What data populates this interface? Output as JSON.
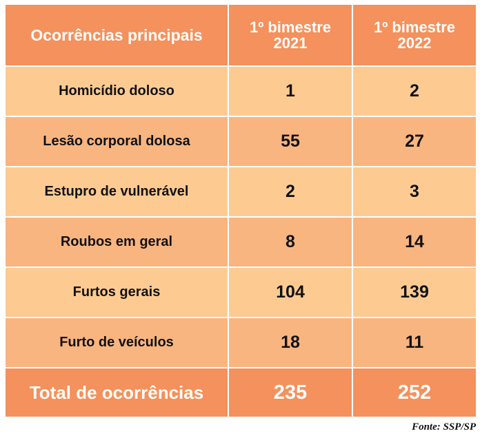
{
  "table": {
    "headers": [
      "Ocorrências principais",
      "1º bimestre 2021",
      "1º bimestre 2022"
    ],
    "header_lines": {
      "col1": "Ocorrências principais",
      "col2_line1": "1º bimestre",
      "col2_line2": "2021",
      "col3_line1": "1º bimestre",
      "col3_line2": "2022"
    },
    "rows": [
      {
        "label": "Homicídio doloso",
        "v2021": "1",
        "v2022": "2"
      },
      {
        "label": "Lesão corporal dolosa",
        "v2021": "55",
        "v2022": "27"
      },
      {
        "label": "Estupro de vulnerável",
        "v2021": "2",
        "v2022": "3"
      },
      {
        "label": "Roubos em geral",
        "v2021": "8",
        "v2022": "14"
      },
      {
        "label": "Furtos gerais",
        "v2021": "104",
        "v2022": "139"
      },
      {
        "label": "Furto de veículos",
        "v2021": "18",
        "v2022": "11"
      }
    ],
    "total": {
      "label": "Total de ocorrências",
      "v2021": "235",
      "v2022": "252"
    }
  },
  "source": "Fonte: SSP/SP",
  "colors": {
    "header": "#F4915C",
    "row_light": "#FDCB92",
    "row_dark": "#F9B57F",
    "separator": "#FFFFFF"
  },
  "chart_data": {
    "type": "table",
    "title": "",
    "columns": [
      "Ocorrências principais",
      "1º bimestre 2021",
      "1º bimestre 2022"
    ],
    "categories": [
      "Homicídio doloso",
      "Lesão corporal dolosa",
      "Estupro de vulnerável",
      "Roubos em geral",
      "Furtos gerais",
      "Furto de veículos"
    ],
    "series": [
      {
        "name": "1º bimestre 2021",
        "values": [
          1,
          55,
          2,
          8,
          104,
          18
        ]
      },
      {
        "name": "1º bimestre 2022",
        "values": [
          2,
          27,
          3,
          14,
          139,
          11
        ]
      }
    ],
    "totals": {
      "label": "Total de ocorrências",
      "1º bimestre 2021": 235,
      "1º bimestre 2022": 252
    },
    "annotations": [
      "Fonte: SSP/SP"
    ]
  }
}
